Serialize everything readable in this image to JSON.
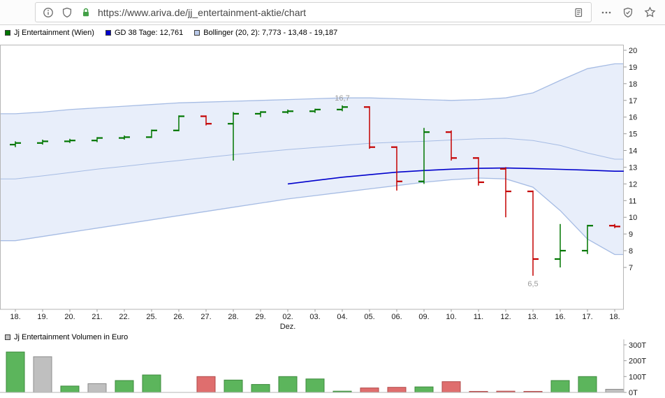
{
  "browser": {
    "url": "https://www.ariva.de/jj_entertainment-aktie/chart",
    "icons": [
      "info-icon",
      "tracking-protection-shield-icon",
      "lock-icon",
      "reader-mode-icon",
      "page-actions-more-icon",
      "shield-check-icon",
      "bookmark-star-icon"
    ]
  },
  "legend": {
    "items": [
      {
        "label": "Jj Entertainment (Wien)",
        "color": "#007600"
      },
      {
        "label": "GD 38 Tage: 12,761",
        "color": "#0000cc"
      },
      {
        "label": "Bollinger (20, 2): 7,773 - 13,48 - 19,187",
        "color": "#b9c9e9"
      }
    ]
  },
  "volume_legend": {
    "label": "Jj Entertainment Volumen in Euro",
    "color": "#c2c2c2"
  },
  "chart_data": {
    "type": "ohlc-bar",
    "x_labels": [
      "18.",
      "19.",
      "20.",
      "21.",
      "22.",
      "25.",
      "26.",
      "27.",
      "28.",
      "29.",
      "02.",
      "03.",
      "04.",
      "05.",
      "06.",
      "09.",
      "10.",
      "11.",
      "12.",
      "13.",
      "16.",
      "17.",
      "18."
    ],
    "month_label": {
      "text": "Dez.",
      "index": 10
    },
    "price_axis": {
      "min": 6,
      "max": 20,
      "ticks": [
        20,
        19,
        18,
        17,
        16,
        15,
        14,
        13,
        12,
        11,
        10,
        9,
        8,
        7
      ]
    },
    "volume_axis": {
      "ticks": [
        {
          "label": "300T",
          "value": 300
        },
        {
          "label": "200T",
          "value": 200
        },
        {
          "label": "100T",
          "value": 100
        },
        {
          "label": "0T",
          "value": 0
        }
      ]
    },
    "annotations": [
      {
        "text": "16,7",
        "index": 12,
        "price": 16.7,
        "position": "above"
      },
      {
        "text": "6,5",
        "index": 19,
        "price": 6.5,
        "position": "below"
      }
    ],
    "candles": [
      {
        "d": "18.",
        "o": 14.35,
        "h": 14.55,
        "l": 14.2,
        "c": 14.45
      },
      {
        "d": "19.",
        "o": 14.45,
        "h": 14.65,
        "l": 14.35,
        "c": 14.55
      },
      {
        "d": "20.",
        "o": 14.55,
        "h": 14.7,
        "l": 14.45,
        "c": 14.6
      },
      {
        "d": "21.",
        "o": 14.6,
        "h": 14.8,
        "l": 14.5,
        "c": 14.75
      },
      {
        "d": "22.",
        "o": 14.75,
        "h": 14.9,
        "l": 14.65,
        "c": 14.8
      },
      {
        "d": "25.",
        "o": 14.8,
        "h": 15.25,
        "l": 14.75,
        "c": 15.2
      },
      {
        "d": "26.",
        "o": 15.2,
        "h": 16.1,
        "l": 15.15,
        "c": 16.05
      },
      {
        "d": "27.",
        "o": 16.05,
        "h": 16.1,
        "l": 15.5,
        "c": 15.6
      },
      {
        "d": "28.",
        "o": 15.6,
        "h": 16.3,
        "l": 13.4,
        "c": 16.2
      },
      {
        "d": "29.",
        "o": 16.2,
        "h": 16.35,
        "l": 16.0,
        "c": 16.3
      },
      {
        "d": "02.",
        "o": 16.3,
        "h": 16.45,
        "l": 16.2,
        "c": 16.35
      },
      {
        "d": "03.",
        "o": 16.35,
        "h": 16.5,
        "l": 16.25,
        "c": 16.45
      },
      {
        "d": "04.",
        "o": 16.45,
        "h": 16.7,
        "l": 16.35,
        "c": 16.6
      },
      {
        "d": "05.",
        "o": 16.6,
        "h": 16.65,
        "l": 14.1,
        "c": 14.2
      },
      {
        "d": "06.",
        "o": 14.2,
        "h": 14.25,
        "l": 11.6,
        "c": 12.15
      },
      {
        "d": "09.",
        "o": 12.15,
        "h": 15.35,
        "l": 12.0,
        "c": 15.1
      },
      {
        "d": "10.",
        "o": 15.1,
        "h": 15.2,
        "l": 13.4,
        "c": 13.55
      },
      {
        "d": "11.",
        "o": 13.55,
        "h": 13.6,
        "l": 11.9,
        "c": 12.1
      },
      {
        "d": "12.",
        "o": 12.9,
        "h": 13.0,
        "l": 10.0,
        "c": 11.55
      },
      {
        "d": "13.",
        "o": 11.55,
        "h": 11.6,
        "l": 6.5,
        "c": 7.5
      },
      {
        "d": "16.",
        "o": 7.5,
        "h": 9.6,
        "l": 7.0,
        "c": 8.0
      },
      {
        "d": "17.",
        "o": 8.0,
        "h": 9.55,
        "l": 7.8,
        "c": 9.5
      },
      {
        "d": "18.",
        "o": 9.5,
        "h": 9.6,
        "l": 9.35,
        "c": 9.45
      }
    ],
    "gd38": {
      "current": 12.761,
      "start_index": 10,
      "values": [
        12.0,
        12.2,
        12.4,
        12.55,
        12.7,
        12.8,
        12.88,
        12.93,
        12.95,
        12.92,
        12.87,
        12.82,
        12.76
      ]
    },
    "bollinger": {
      "current_lower": 7.773,
      "current_middle": 13.48,
      "current_upper": 19.187,
      "upper": [
        16.2,
        16.3,
        16.45,
        16.55,
        16.65,
        16.75,
        16.85,
        16.9,
        16.95,
        17.0,
        17.05,
        17.1,
        17.15,
        17.15,
        17.1,
        17.05,
        17.0,
        17.05,
        17.15,
        17.45,
        18.2,
        18.9,
        19.19
      ],
      "middle": [
        12.3,
        12.48,
        12.68,
        12.88,
        13.05,
        13.23,
        13.4,
        13.58,
        13.75,
        13.9,
        14.05,
        14.18,
        14.3,
        14.43,
        14.5,
        14.55,
        14.63,
        14.7,
        14.73,
        14.6,
        14.3,
        13.85,
        13.48
      ],
      "lower": [
        8.6,
        8.85,
        9.1,
        9.35,
        9.6,
        9.85,
        10.1,
        10.35,
        10.6,
        10.85,
        11.1,
        11.3,
        11.5,
        11.7,
        11.9,
        12.1,
        12.25,
        12.35,
        12.3,
        11.8,
        10.4,
        8.7,
        7.77
      ]
    },
    "volume": [
      {
        "d": "18.",
        "v": 255,
        "color": "green"
      },
      {
        "d": "19.",
        "v": 225,
        "color": "gray"
      },
      {
        "d": "20.",
        "v": 40,
        "color": "green"
      },
      {
        "d": "21.",
        "v": 55,
        "color": "gray"
      },
      {
        "d": "22.",
        "v": 75,
        "color": "green"
      },
      {
        "d": "25.",
        "v": 110,
        "color": "green"
      },
      {
        "d": "26.",
        "v": 0,
        "color": "green"
      },
      {
        "d": "27.",
        "v": 100,
        "color": "red"
      },
      {
        "d": "28.",
        "v": 78,
        "color": "green"
      },
      {
        "d": "29.",
        "v": 50,
        "color": "green"
      },
      {
        "d": "02.",
        "v": 100,
        "color": "green"
      },
      {
        "d": "03.",
        "v": 85,
        "color": "green"
      },
      {
        "d": "04.",
        "v": 8,
        "color": "green"
      },
      {
        "d": "05.",
        "v": 28,
        "color": "red"
      },
      {
        "d": "06.",
        "v": 32,
        "color": "red"
      },
      {
        "d": "09.",
        "v": 35,
        "color": "green"
      },
      {
        "d": "10.",
        "v": 68,
        "color": "red"
      },
      {
        "d": "11.",
        "v": 6,
        "color": "red"
      },
      {
        "d": "12.",
        "v": 8,
        "color": "red"
      },
      {
        "d": "13.",
        "v": 4,
        "color": "red"
      },
      {
        "d": "16.",
        "v": 75,
        "color": "green"
      },
      {
        "d": "17.",
        "v": 100,
        "color": "green"
      },
      {
        "d": "18.",
        "v": 20,
        "color": "gray"
      }
    ],
    "colors": {
      "up": "#007600",
      "down": "#c40000",
      "gd": "#0000cc",
      "band_fill": "#dbe5f7",
      "band_line": "#a6bce4",
      "vol_green": "#5cb55c",
      "vol_green_stroke": "#3d8a3d",
      "vol_red": "#df6e6e",
      "vol_red_stroke": "#b24a4a",
      "vol_gray": "#bfbfbf",
      "vol_gray_stroke": "#8c8c8c"
    }
  }
}
